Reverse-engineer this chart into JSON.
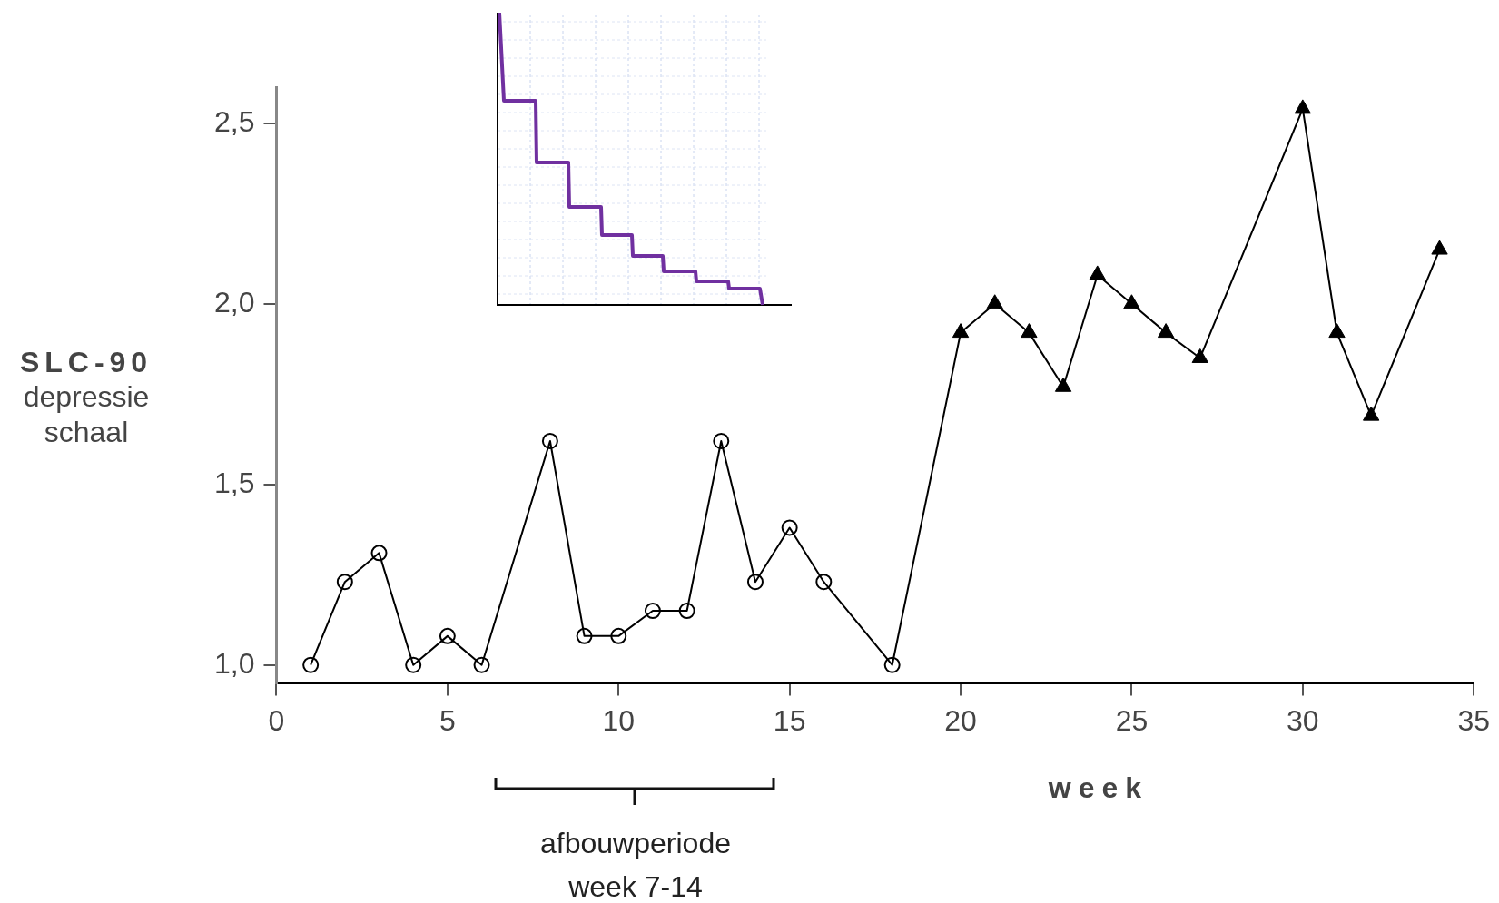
{
  "chart_data": {
    "type": "line",
    "xlabel": "week",
    "ylabel": "SLC-90\ndepressie\nschaal",
    "annotations": [
      "afbouwperiode\nweek 7-14"
    ],
    "xlim": [
      0,
      35
    ],
    "xticks": [
      0,
      5,
      10,
      15,
      20,
      25,
      30,
      35
    ],
    "ylim": [
      0.95,
      2.6
    ],
    "yticks": [
      {
        "value": 1,
        "label": "1,0"
      },
      {
        "value": 1.5,
        "label": "1,5"
      },
      {
        "value": 2,
        "label": "2,0"
      },
      {
        "value": 2.5,
        "label": "2,5"
      }
    ],
    "grid": false,
    "legend": false,
    "series": [
      {
        "type": "line",
        "marker": "none",
        "line_style": "solid",
        "color": "#000000",
        "x": [
          1,
          2,
          3,
          4,
          5,
          6,
          8,
          9,
          10,
          11,
          12,
          13,
          14,
          15,
          16,
          18,
          20,
          21,
          22,
          23,
          24,
          25,
          26,
          27,
          30,
          31,
          32,
          34
        ],
        "values": [
          1.0,
          1.23,
          1.31,
          1.0,
          1.08,
          1.0,
          1.62,
          1.08,
          1.08,
          1.15,
          1.15,
          1.62,
          1.23,
          1.38,
          1.23,
          1.0,
          1.92,
          2.0,
          1.92,
          1.77,
          2.08,
          2.0,
          1.92,
          1.85,
          2.54,
          1.92,
          1.69,
          2.15
        ]
      },
      {
        "type": "scatter",
        "marker": "circle",
        "color": "#000000",
        "x": [
          1,
          2,
          3,
          4,
          5,
          6,
          8,
          9,
          10,
          11,
          12,
          13,
          14,
          15,
          16,
          18
        ],
        "values": [
          1.0,
          1.23,
          1.31,
          1.0,
          1.08,
          1.0,
          1.62,
          1.08,
          1.08,
          1.15,
          1.15,
          1.62,
          1.23,
          1.38,
          1.23,
          1.0
        ]
      },
      {
        "type": "scatter",
        "marker": "triangle",
        "color": "#000000",
        "x": [
          20,
          21,
          22,
          23,
          24,
          25,
          26,
          27,
          30,
          31,
          32,
          34
        ],
        "values": [
          1.92,
          2.0,
          1.92,
          1.77,
          2.08,
          2.0,
          1.92,
          1.85,
          2.54,
          1.92,
          1.69,
          2.15
        ]
      }
    ]
  }
}
